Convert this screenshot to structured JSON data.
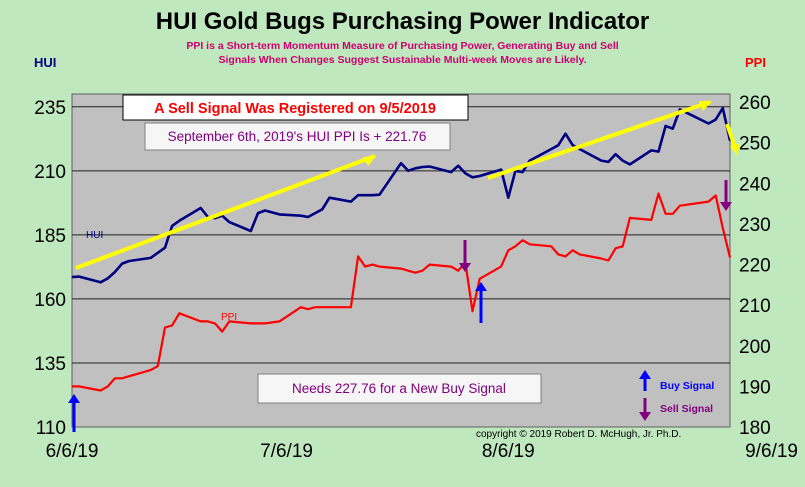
{
  "title": "HUI Gold Bugs Purchasing Power Indicator",
  "subtitle_lines": [
    "PPI is a Short-term Momentum Measure of Purchasing Power, Generating Buy and Sell",
    "Signals When Changes Suggest Sustainable Multi-week Moves are Likely."
  ],
  "left_axis_title": "HUI",
  "right_axis_title": "PPI",
  "colors": {
    "background": "#bfe8bf",
    "plot": "#c0c0c0",
    "hui": "#000080",
    "ppi": "#ff0000",
    "trend": "#ffff00",
    "buy_arrow": "#0000ff",
    "sell_arrow": "#800080",
    "callout_text": "#800080",
    "sell_banner_text": "#ff0000"
  },
  "annotations": {
    "sell_signal": "A Sell Signal Was Registered on 9/5/2019",
    "ppi_value": "September 6th, 2019's HUI PPI Is + 221.76",
    "needs": "Needs 227.76  for a New Buy Signal",
    "buy_legend": "Buy Signal",
    "sell_legend": "Sell Signal",
    "copyright": "copyright © 2019 Robert D. McHugh, Jr. Ph.D.",
    "hui_series_label": "HUI",
    "ppi_series_label": "PPI"
  },
  "chart_data": {
    "type": "line",
    "x_start": "6/6/19",
    "x_end": "9/6/19",
    "x_tick_labels": [
      "6/6/19",
      "7/6/19",
      "8/6/19",
      "9/6/19"
    ],
    "left_axis": {
      "label": "HUI",
      "ylim": [
        110,
        240
      ],
      "ticks": [
        110,
        135,
        160,
        185,
        210,
        235
      ]
    },
    "right_axis": {
      "label": "PPI",
      "ylim": [
        180,
        262
      ],
      "ticks": [
        180,
        190,
        200,
        210,
        220,
        230,
        240,
        250,
        260
      ]
    },
    "grid": true,
    "series": [
      {
        "name": "HUI",
        "axis": "left",
        "x": [
          "6/6/19",
          "6/7/19",
          "6/10/19",
          "6/11/19",
          "6/12/19",
          "6/13/19",
          "6/14/19",
          "6/17/19",
          "6/18/19",
          "6/19/19",
          "6/20/19",
          "6/21/19",
          "6/24/19",
          "6/25/19",
          "6/26/19",
          "6/27/19",
          "6/28/19",
          "7/1/19",
          "7/2/19",
          "7/3/19",
          "7/5/19",
          "7/8/19",
          "7/9/19",
          "7/10/19",
          "7/11/19",
          "7/12/19",
          "7/15/19",
          "7/16/19",
          "7/17/19",
          "7/18/19",
          "7/19/19",
          "7/22/19",
          "7/23/19",
          "7/24/19",
          "7/25/19",
          "7/26/19",
          "7/29/19",
          "7/30/19",
          "7/31/19",
          "8/1/19",
          "8/2/19",
          "8/5/19",
          "8/6/19",
          "8/7/19",
          "8/8/19",
          "8/9/19",
          "8/12/19",
          "8/13/19",
          "8/14/19",
          "8/15/19",
          "8/16/19",
          "8/19/19",
          "8/20/19",
          "8/21/19",
          "8/22/19",
          "8/23/19",
          "8/26/19",
          "8/27/19",
          "8/28/19",
          "8/29/19",
          "8/30/19",
          "9/3/19",
          "9/4/19",
          "9/5/19",
          "9/6/19"
        ],
        "values": [
          168.5,
          168.7,
          166.5,
          168.0,
          170.5,
          173.8,
          174.8,
          176.0,
          178.0,
          180.0,
          188.5,
          190.5,
          195.5,
          192.0,
          191.5,
          192.5,
          190.0,
          186.5,
          193.5,
          194.5,
          193.0,
          192.5,
          192.0,
          193.5,
          195.0,
          199.5,
          198.0,
          200.5,
          200.5,
          200.5,
          200.7,
          213.0,
          210.0,
          211.0,
          211.5,
          211.7,
          209.5,
          212.0,
          209.0,
          207.5,
          208.0,
          210.5,
          199.5,
          210.0,
          209.5,
          214.0,
          218.5,
          220.0,
          224.5,
          220.0,
          218.5,
          214.0,
          213.5,
          216.5,
          214.0,
          212.5,
          218.0,
          217.5,
          227.5,
          226.5,
          234.0,
          228.5,
          230.0,
          234.5,
          221.8
        ]
      },
      {
        "name": "PPI",
        "axis": "right",
        "x": [
          "6/6/19",
          "6/7/19",
          "6/10/19",
          "6/11/19",
          "6/12/19",
          "6/13/19",
          "6/14/19",
          "6/17/19",
          "6/18/19",
          "6/19/19",
          "6/20/19",
          "6/21/19",
          "6/24/19",
          "6/25/19",
          "6/26/19",
          "6/27/19",
          "6/28/19",
          "7/1/19",
          "7/2/19",
          "7/3/19",
          "7/5/19",
          "7/8/19",
          "7/9/19",
          "7/10/19",
          "7/11/19",
          "7/12/19",
          "7/15/19",
          "7/16/19",
          "7/17/19",
          "7/18/19",
          "7/19/19",
          "7/22/19",
          "7/23/19",
          "7/24/19",
          "7/25/19",
          "7/26/19",
          "7/29/19",
          "7/30/19",
          "7/31/19",
          "8/1/19",
          "8/2/19",
          "8/5/19",
          "8/6/19",
          "8/7/19",
          "8/8/19",
          "8/9/19",
          "8/12/19",
          "8/13/19",
          "8/14/19",
          "8/15/19",
          "8/16/19",
          "8/19/19",
          "8/20/19",
          "8/21/19",
          "8/22/19",
          "8/23/19",
          "8/26/19",
          "8/27/19",
          "8/28/19",
          "8/29/19",
          "8/30/19",
          "9/3/19",
          "9/4/19",
          "9/5/19",
          "9/6/19"
        ],
        "values": [
          190.0,
          190.0,
          189.0,
          190.0,
          192.0,
          192.0,
          192.5,
          194.0,
          195.0,
          204.5,
          205.0,
          208.0,
          206.0,
          206.0,
          205.5,
          203.5,
          206.0,
          205.5,
          205.5,
          205.5,
          206.0,
          209.5,
          209.0,
          209.5,
          209.5,
          209.5,
          209.5,
          222.0,
          219.5,
          220.0,
          219.5,
          219.0,
          218.5,
          218.0,
          218.5,
          220.0,
          219.5,
          218.5,
          220.5,
          208.5,
          216.5,
          219.5,
          223.5,
          224.5,
          226.0,
          225.0,
          224.5,
          222.5,
          222.0,
          223.5,
          222.5,
          221.5,
          221.0,
          224.0,
          224.5,
          231.5,
          231.0,
          237.5,
          232.5,
          232.5,
          234.5,
          235.5,
          237.0,
          229.0,
          221.76
        ]
      }
    ]
  }
}
